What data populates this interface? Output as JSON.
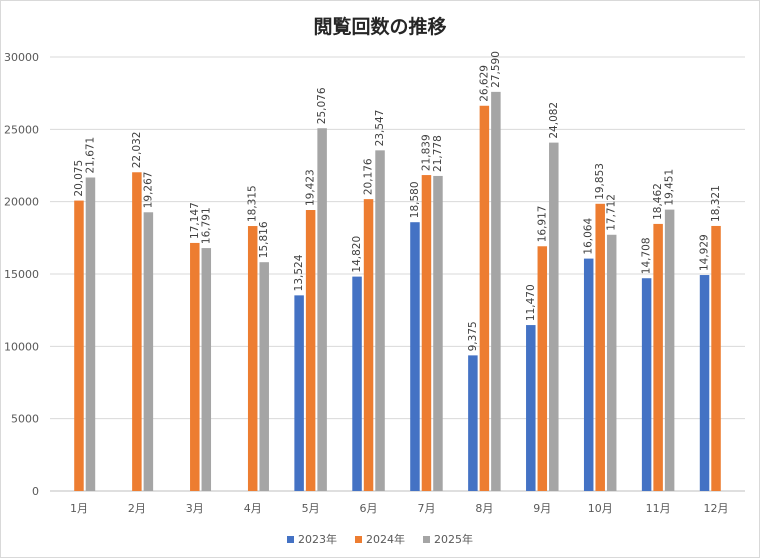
{
  "chart_data": {
    "type": "bar",
    "title": "閲覧回数の推移",
    "categories": [
      "1月",
      "2月",
      "3月",
      "4月",
      "5月",
      "6月",
      "7月",
      "8月",
      "9月",
      "10月",
      "11月",
      "12月"
    ],
    "ylim": [
      0,
      30000
    ],
    "yticks": [
      0,
      5000,
      10000,
      15000,
      20000,
      25000,
      30000
    ],
    "grid": true,
    "legend_position": "bottom",
    "series": [
      {
        "name": "2023年",
        "color": "#4472c4",
        "values": [
          null,
          null,
          null,
          null,
          13524,
          14820,
          18580,
          9375,
          11470,
          16064,
          14708,
          14929
        ],
        "labels": [
          null,
          null,
          null,
          null,
          "13,524",
          "14,820",
          "18,580",
          "9,375",
          "11,470",
          "16,064",
          "14,708",
          "14,929"
        ]
      },
      {
        "name": "2024年",
        "color": "#ed7d31",
        "values": [
          20075,
          22032,
          17147,
          18315,
          19423,
          20176,
          21839,
          26629,
          16917,
          19853,
          18462,
          18321
        ],
        "labels": [
          "20,075",
          "22,032",
          "17,147",
          "18,315",
          "19,423",
          "20,176",
          "21,839",
          "26,629",
          "16,917",
          "19,853",
          "18,462",
          "18,321"
        ]
      },
      {
        "name": "2025年",
        "color": "#a5a5a5",
        "values": [
          21671,
          19267,
          16791,
          15816,
          25076,
          23547,
          21778,
          27590,
          24082,
          17712,
          19451,
          null
        ],
        "labels": [
          "21,671",
          "19,267",
          "16,791",
          "15,816",
          "25,076",
          "23,547",
          "21,778",
          "27,590",
          "24,082",
          "17,712",
          "19,451",
          null
        ]
      }
    ]
  }
}
